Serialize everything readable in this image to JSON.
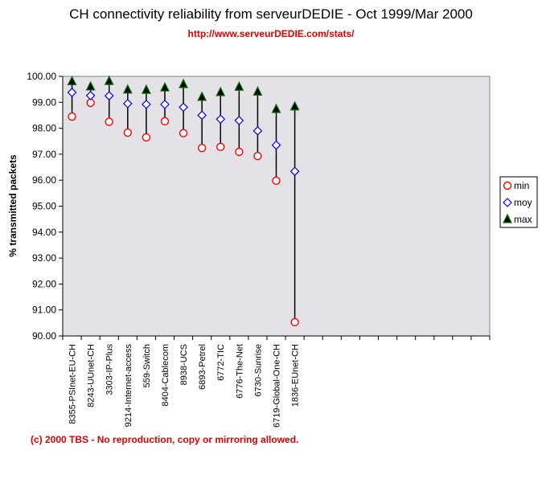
{
  "title": "CH connectivity reliability from serveurDEDIE - Oct 1999/Mar 2000",
  "subtitle": "http://www.serveurDEDIE.com/stats/",
  "footer": "(c) 2000 TBS - No reproduction, copy or mirroring allowed.",
  "colors": {
    "plot_background": "#e4e2e6",
    "min": "#ff0000",
    "moy": "#0000ff",
    "max_fill": "#000000",
    "max_edge": "#007700",
    "line": "#000000",
    "accent_text": "#e00000"
  },
  "chart_data": {
    "type": "scatter",
    "subtype": "high-low-close",
    "title": "CH connectivity reliability from serveurDEDIE - Oct 1999/Mar 2000",
    "subtitle": "http://www.serveurDEDIE.com/stats/",
    "xlabel": "",
    "ylabel": "% transmitted packets",
    "ylim": [
      90,
      100
    ],
    "yticks": [
      "90.00",
      "91.00",
      "92.00",
      "93.00",
      "94.00",
      "95.00",
      "96.00",
      "97.00",
      "98.00",
      "99.00",
      "100.00"
    ],
    "total_category_slots": 23,
    "grid": false,
    "legend_position": "right",
    "categories": [
      "8355-PSInet-EU-CH",
      "8243-UUnet-CH",
      "3303-IP-Plus",
      "9214-Internet-access",
      "559-Switch",
      "8404-Cablecom",
      "8938-UCS",
      "6893-Petrel",
      "6772-TIC",
      "6776-The-Net",
      "6730-Sunrise",
      "6719-Global-One-CH",
      "1836-EUnet-CH"
    ],
    "series": [
      {
        "name": "min",
        "marker": "circle",
        "values": [
          98.45,
          98.98,
          98.25,
          97.83,
          97.65,
          98.27,
          97.81,
          97.24,
          97.28,
          97.09,
          96.93,
          95.98,
          90.53
        ]
      },
      {
        "name": "moy",
        "marker": "diamond",
        "values": [
          99.38,
          99.26,
          99.25,
          98.95,
          98.92,
          98.92,
          98.81,
          98.5,
          98.35,
          98.3,
          97.9,
          97.35,
          96.34
        ]
      },
      {
        "name": "max",
        "marker": "triangle",
        "values": [
          99.8,
          99.6,
          99.81,
          99.48,
          99.47,
          99.56,
          99.69,
          99.2,
          99.38,
          99.59,
          99.4,
          98.73,
          98.83
        ]
      }
    ]
  }
}
